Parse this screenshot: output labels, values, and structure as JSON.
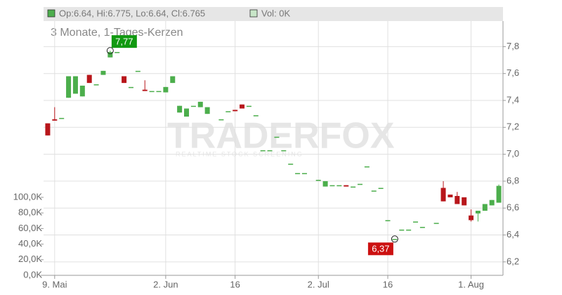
{
  "chart_data": {
    "type": "candlestick",
    "header_ohlc": "Op:6.64, Hi:6.775, Lo:6.64, Cl:6.765",
    "header_volume": "Vol: 0K",
    "subtitle": "3 Monate, 1-Tages-Kerzen",
    "watermark": "TRADERFOX",
    "watermark_tagline": "REALTIME STOCK SCREENING",
    "up_color": "#4cae4c",
    "down_color": "#b8161b",
    "volume_legend_color": "#c8e6c8",
    "grid": true,
    "x": [
      -1,
      0,
      1,
      2,
      3,
      4,
      5,
      6,
      7,
      8,
      9,
      10,
      11,
      12,
      13,
      14,
      15,
      16,
      17,
      18,
      19,
      20,
      21,
      22,
      24,
      25,
      26,
      27,
      28,
      29,
      30,
      31,
      32,
      33,
      34,
      35,
      36,
      38,
      39,
      40,
      41,
      42,
      43,
      44,
      45,
      46,
      47,
      48,
      49,
      50,
      51,
      52,
      53,
      55,
      56,
      57,
      58,
      59,
      60,
      61,
      62,
      63,
      64
    ],
    "open": [
      7.23,
      7.26,
      7.27,
      7.42,
      7.45,
      7.43,
      7.59,
      7.52,
      7.59,
      7.72,
      7.76,
      7.58,
      7.5,
      7.62,
      7.48,
      7.47,
      7.47,
      7.46,
      7.53,
      7.31,
      7.28,
      7.36,
      7.35,
      7.3,
      7.26,
      7.32,
      7.33,
      7.37,
      7.36,
      7.29,
      7.03,
      7.03,
      7.13,
      7.03,
      6.93,
      6.86,
      6.86,
      6.81,
      6.76,
      6.77,
      6.77,
      6.77,
      6.76,
      6.78,
      6.91,
      6.73,
      6.75,
      6.51,
      6.37,
      6.44,
      6.44,
      6.5,
      6.46,
      6.49,
      6.75,
      6.7,
      6.69,
      6.68,
      6.545,
      6.56,
      6.58,
      6.62,
      6.64
    ],
    "high": [
      7.23,
      7.35,
      7.27,
      7.58,
      7.58,
      7.51,
      7.59,
      7.52,
      7.62,
      7.77,
      7.76,
      7.58,
      7.5,
      7.62,
      7.55,
      7.47,
      7.47,
      7.5,
      7.58,
      7.36,
      7.34,
      7.36,
      7.39,
      7.35,
      7.26,
      7.32,
      7.33,
      7.37,
      7.36,
      7.29,
      7.03,
      7.03,
      7.13,
      7.03,
      6.93,
      6.86,
      6.86,
      6.81,
      6.8,
      6.77,
      6.77,
      6.77,
      6.76,
      6.78,
      6.91,
      6.73,
      6.75,
      6.51,
      6.37,
      6.44,
      6.44,
      6.5,
      6.46,
      6.49,
      6.8,
      6.7,
      6.72,
      6.68,
      6.59,
      6.58,
      6.63,
      6.66,
      6.775
    ],
    "low": [
      7.14,
      7.25,
      7.27,
      7.42,
      7.45,
      7.43,
      7.53,
      7.52,
      7.59,
      7.72,
      7.76,
      7.53,
      7.5,
      7.62,
      7.47,
      7.47,
      7.47,
      7.46,
      7.53,
      7.31,
      7.28,
      7.36,
      7.35,
      7.3,
      7.26,
      7.32,
      7.32,
      7.34,
      7.36,
      7.29,
      7.03,
      7.03,
      7.13,
      7.03,
      6.93,
      6.86,
      6.86,
      6.81,
      6.76,
      6.77,
      6.77,
      6.76,
      6.76,
      6.78,
      6.91,
      6.73,
      6.75,
      6.51,
      6.37,
      6.44,
      6.44,
      6.5,
      6.46,
      6.49,
      6.65,
      6.68,
      6.63,
      6.62,
      6.5,
      6.5,
      6.58,
      6.62,
      6.64
    ],
    "close": [
      7.14,
      7.25,
      7.27,
      7.58,
      7.58,
      7.51,
      7.53,
      7.52,
      7.62,
      7.76,
      7.76,
      7.53,
      7.5,
      7.62,
      7.47,
      7.47,
      7.47,
      7.5,
      7.58,
      7.36,
      7.34,
      7.36,
      7.39,
      7.35,
      7.26,
      7.32,
      7.32,
      7.34,
      7.36,
      7.29,
      7.03,
      7.03,
      7.13,
      7.03,
      6.93,
      6.86,
      6.86,
      6.81,
      6.8,
      6.77,
      6.77,
      6.76,
      6.76,
      6.78,
      6.91,
      6.73,
      6.75,
      6.51,
      6.37,
      6.44,
      6.44,
      6.5,
      6.46,
      6.49,
      6.65,
      6.68,
      6.63,
      6.62,
      6.51,
      6.58,
      6.63,
      6.66,
      6.765
    ],
    "xlim": [
      -1.6,
      64.6
    ],
    "xticks": [
      {
        "value": 0,
        "label": "9. Mai"
      },
      {
        "value": 16,
        "label": "2. Jun"
      },
      {
        "value": 26,
        "label": "16"
      },
      {
        "value": 38,
        "label": "2. Jul"
      },
      {
        "value": 48,
        "label": "16"
      },
      {
        "value": 60,
        "label": "1. Aug"
      }
    ],
    "ylim": [
      6.1,
      7.99
    ],
    "yticks": [
      {
        "value": 6.2,
        "label": "6,2"
      },
      {
        "value": 6.4,
        "label": "6,4"
      },
      {
        "value": 6.6,
        "label": "6,6"
      },
      {
        "value": 6.8,
        "label": "6,8"
      },
      {
        "value": 7.0,
        "label": "7,0"
      },
      {
        "value": 7.2,
        "label": "7,2"
      },
      {
        "value": 7.4,
        "label": "7,4"
      },
      {
        "value": 7.6,
        "label": "7,6"
      },
      {
        "value": 7.8,
        "label": "7,8"
      }
    ],
    "y2lim": [
      0,
      326000
    ],
    "y2ticks": [
      {
        "value": 0,
        "label": "0,0K"
      },
      {
        "value": 20000,
        "label": "20,0K"
      },
      {
        "value": 40000,
        "label": "40,0K"
      },
      {
        "value": 60000,
        "label": "60,0K"
      },
      {
        "value": 80000,
        "label": "80,0K"
      },
      {
        "value": 100000,
        "label": "100,0K"
      }
    ],
    "annotations": [
      {
        "label": "7,77",
        "x": 8,
        "value": 7.77,
        "color": "#119911"
      },
      {
        "label": "6,37",
        "x": 49,
        "value": 6.37,
        "color": "#cc1111"
      }
    ]
  }
}
